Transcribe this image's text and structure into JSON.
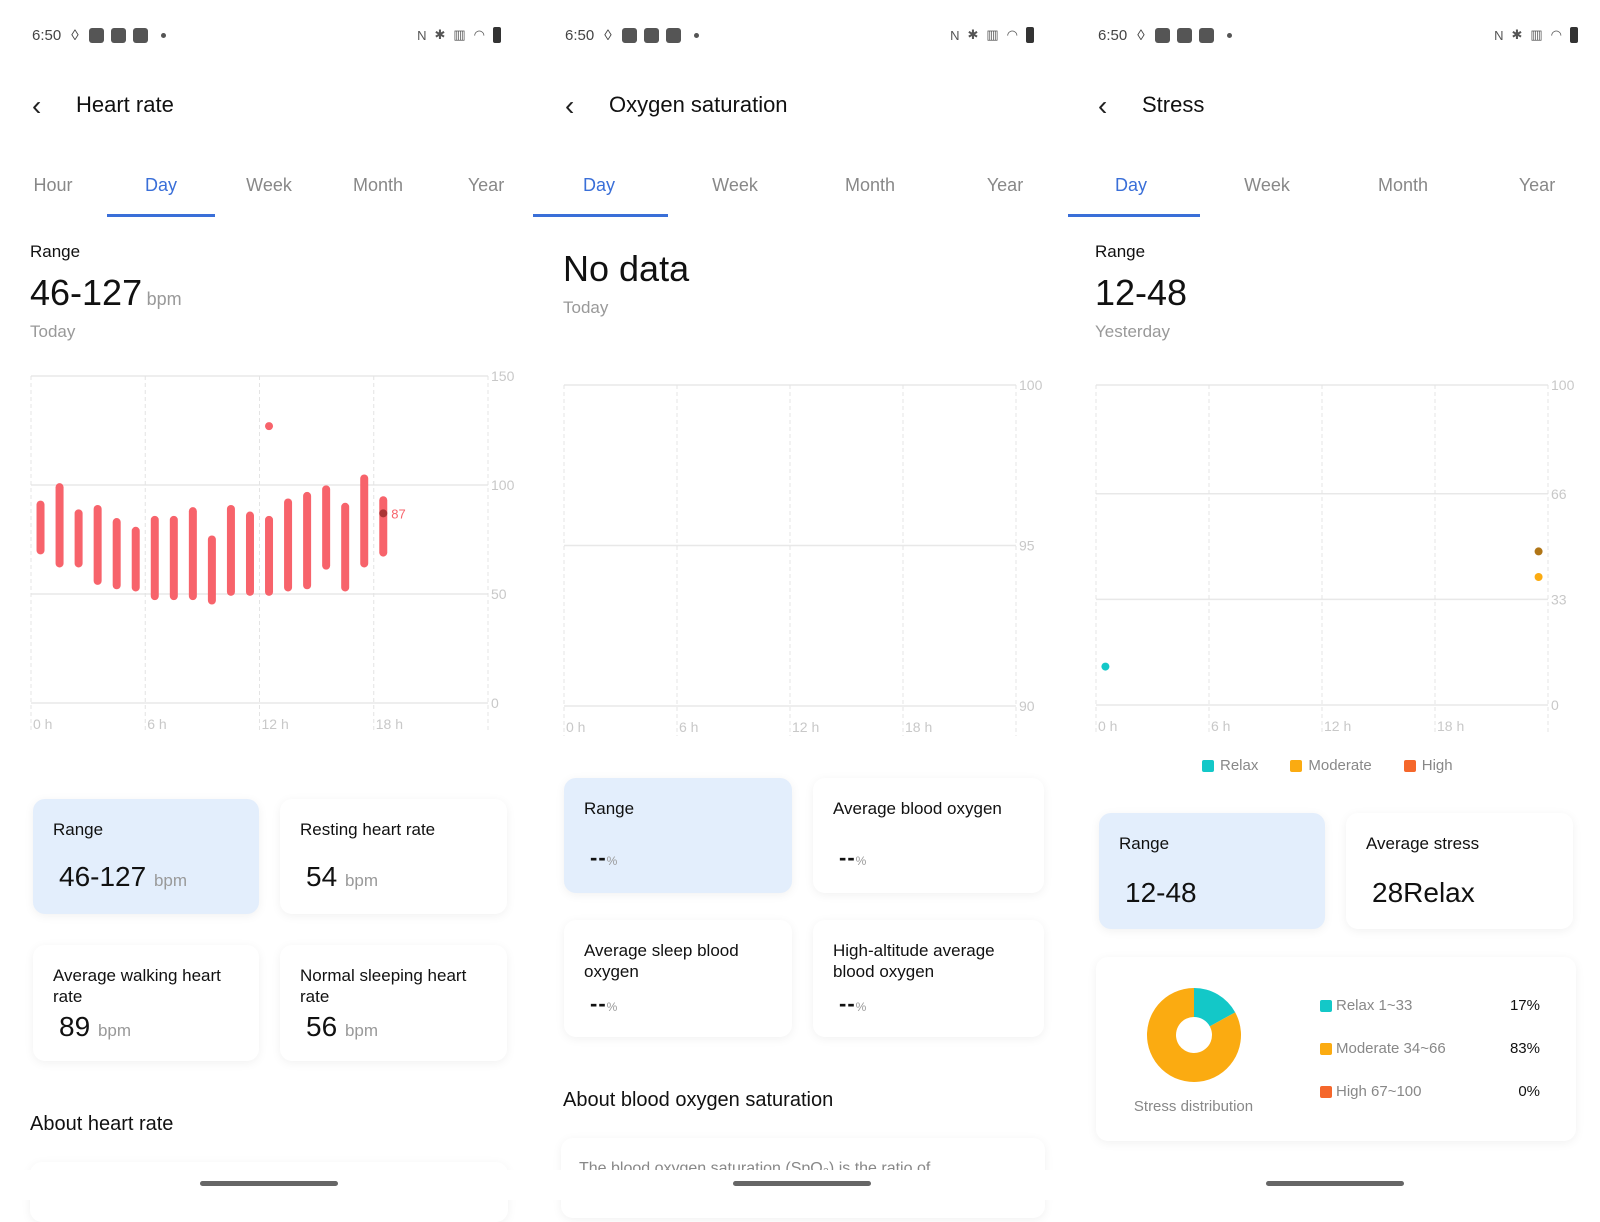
{
  "status": {
    "time": "6:50",
    "right_icons": [
      "nfc-icon",
      "bluetooth-icon",
      "vibrate-icon",
      "wifi-icon",
      "battery-icon"
    ]
  },
  "colors": {
    "accent": "#3a6fd8",
    "heart": "#f7636b",
    "relax": "#13c8c8",
    "moderate": "#fbab11",
    "high": "#f5672b",
    "highlight_card": "#e3eefc"
  },
  "heart": {
    "title": "Heart rate",
    "tabs": [
      "Hour",
      "Day",
      "Week",
      "Month",
      "Year"
    ],
    "active_tab": "Day",
    "summary_label": "Range",
    "summary_value": "46-127",
    "summary_unit": "bpm",
    "summary_date": "Today",
    "cards": [
      {
        "label": "Range",
        "value": "46-127",
        "unit": "bpm"
      },
      {
        "label": "Resting heart rate",
        "value": "54",
        "unit": "bpm"
      },
      {
        "label": "Average walking heart rate",
        "value": "89",
        "unit": "bpm"
      },
      {
        "label": "Normal sleeping heart rate",
        "value": "56",
        "unit": "bpm"
      }
    ],
    "about_title": "About heart rate"
  },
  "oxygen": {
    "title": "Oxygen saturation",
    "tabs": [
      "Day",
      "Week",
      "Month",
      "Year"
    ],
    "active_tab": "Day",
    "summary_value": "No data",
    "summary_date": "Today",
    "cards": [
      {
        "label": "Range",
        "value": "--",
        "unit": "%"
      },
      {
        "label": "Average blood oxygen",
        "value": "--",
        "unit": "%"
      },
      {
        "label": "Average sleep blood oxygen",
        "value": "--",
        "unit": "%"
      },
      {
        "label": "High-altitude average blood oxygen",
        "value": "--",
        "unit": "%"
      }
    ],
    "about_title": "About blood oxygen saturation",
    "about_text": "The blood oxygen saturation (SpO₂) is the ratio of"
  },
  "stress": {
    "title": "Stress",
    "tabs": [
      "Day",
      "Week",
      "Month",
      "Year"
    ],
    "active_tab": "Day",
    "summary_label": "Range",
    "summary_value": "12-48",
    "summary_date": "Yesterday",
    "legend": [
      "Relax",
      "Moderate",
      "High"
    ],
    "cards": [
      {
        "label": "Range",
        "value": "12-48"
      },
      {
        "label": "Average stress",
        "value": "28Relax"
      }
    ],
    "distribution": {
      "title": "Stress distribution",
      "items": [
        {
          "label": "Relax 1~33",
          "percent": "17%",
          "value": 17
        },
        {
          "label": "Moderate 34~66",
          "percent": "83%",
          "value": 83
        },
        {
          "label": "High 67~100",
          "percent": "0%",
          "value": 0
        }
      ]
    }
  },
  "chart_data": [
    {
      "type": "bar",
      "title": "",
      "x_ticks": [
        "0 h",
        "6 h",
        "12 h",
        "18 h"
      ],
      "xlim": [
        0,
        24
      ],
      "ylim": [
        0,
        150
      ],
      "y_ticks": [
        0,
        50,
        100,
        150
      ],
      "grid": true,
      "ranges": [
        [
          0.5,
          70,
          91
        ],
        [
          1.5,
          64,
          99
        ],
        [
          2.5,
          64,
          87
        ],
        [
          3.5,
          56,
          89
        ],
        [
          4.5,
          54,
          83
        ],
        [
          5.5,
          53,
          79
        ],
        [
          6.5,
          49,
          84
        ],
        [
          7.5,
          49,
          84
        ],
        [
          8.5,
          49,
          88
        ],
        [
          9.5,
          47,
          75
        ],
        [
          10.5,
          51,
          89
        ],
        [
          11.5,
          51,
          86
        ],
        [
          12.5,
          51,
          84
        ],
        [
          13.5,
          53,
          92
        ],
        [
          14.5,
          54,
          95
        ],
        [
          15.5,
          63,
          98
        ],
        [
          16.5,
          53,
          90
        ],
        [
          17.5,
          64,
          103
        ],
        [
          18.5,
          69,
          93
        ]
      ],
      "points": [
        [
          12.5,
          127
        ]
      ],
      "current": {
        "x": 18.5,
        "y": 87,
        "label": "87"
      }
    },
    {
      "type": "scatter",
      "title": "",
      "x_ticks": [
        "0 h",
        "6 h",
        "12 h",
        "18 h"
      ],
      "xlim": [
        0,
        24
      ],
      "ylim": [
        90,
        100
      ],
      "y_ticks": [
        90,
        95,
        100
      ],
      "grid": true,
      "points": []
    },
    {
      "type": "scatter",
      "title": "",
      "x_ticks": [
        "0 h",
        "6 h",
        "12 h",
        "18 h"
      ],
      "xlim": [
        0,
        24
      ],
      "ylim": [
        0,
        100
      ],
      "y_ticks": [
        0,
        33,
        66,
        100
      ],
      "grid": true,
      "legend": [
        "Relax",
        "Moderate",
        "High"
      ],
      "legend_position": "bottom",
      "points": [
        {
          "x": 0.5,
          "y": 12,
          "level": "relax"
        },
        {
          "x": 23.5,
          "y": 48,
          "level": "moderate",
          "selected": true
        },
        {
          "x": 23.5,
          "y": 40,
          "level": "moderate"
        }
      ]
    },
    {
      "type": "pie",
      "title": "Stress distribution",
      "labels": [
        "Relax 1~33",
        "Moderate 34~66",
        "High 67~100"
      ],
      "values": [
        17,
        83,
        0
      ],
      "donut": true
    }
  ]
}
